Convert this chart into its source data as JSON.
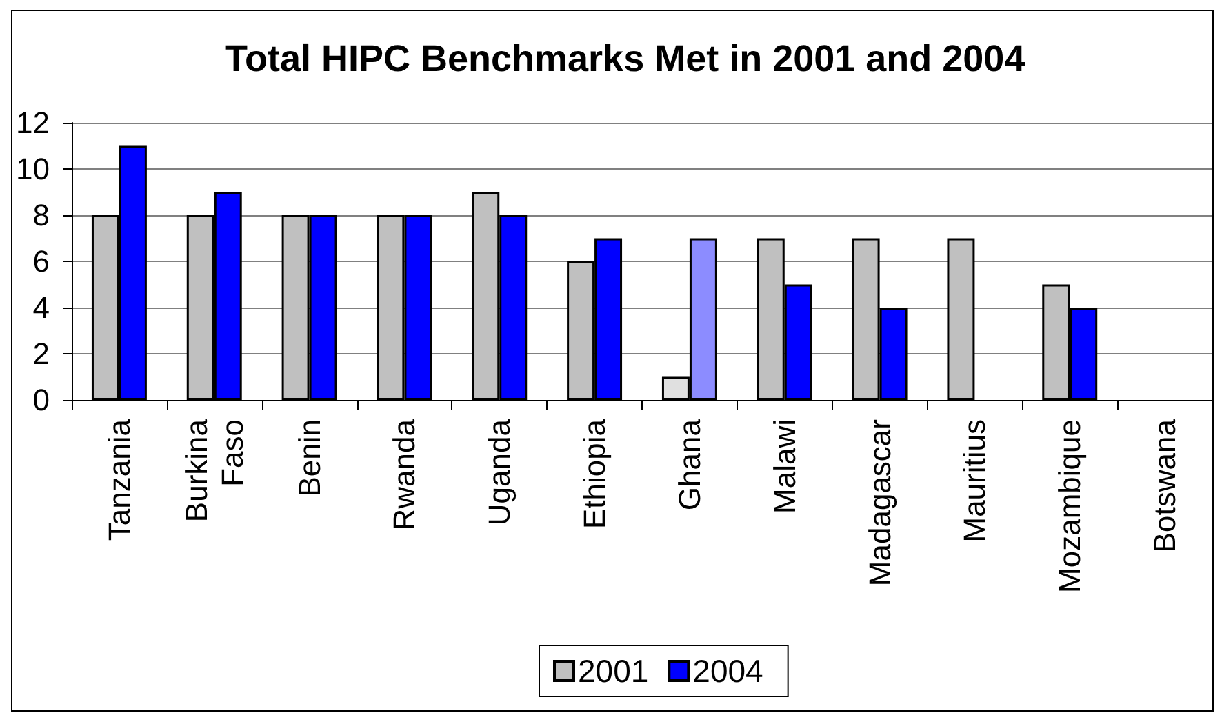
{
  "chart_data": {
    "type": "bar",
    "title": "Total HIPC Benchmarks Met in 2001 and 2004",
    "categories": [
      "Tanzania",
      "Burkina Faso",
      "Benin",
      "Rwanda",
      "Uganda",
      "Ethiopia",
      "Ghana",
      "Malawi",
      "Madagascar",
      "Mauritius",
      "Mozambique",
      "Botswana"
    ],
    "series": [
      {
        "name": "2001",
        "color": "#c0c0c0",
        "colors": [
          "#c0c0c0",
          "#c0c0c0",
          "#c0c0c0",
          "#c0c0c0",
          "#c0c0c0",
          "#c0c0c0",
          "#e0e0e0",
          "#c0c0c0",
          "#c0c0c0",
          "#c0c0c0",
          "#c0c0c0",
          "#c0c0c0"
        ],
        "values": [
          8,
          8,
          8,
          8,
          9,
          6,
          1,
          7,
          7,
          7,
          5,
          null
        ]
      },
      {
        "name": "2004",
        "color": "#0000ff",
        "colors": [
          "#0000ff",
          "#0000ff",
          "#0000ff",
          "#0000ff",
          "#0000ff",
          "#0000ff",
          "#8c8cff",
          "#0000ff",
          "#0000ff",
          "#0000ff",
          "#0000ff",
          "#0000ff"
        ],
        "values": [
          11,
          9,
          8,
          8,
          8,
          7,
          7,
          5,
          4,
          null,
          4,
          null
        ]
      }
    ],
    "ylim": [
      0,
      12
    ],
    "yticks": [
      0,
      2,
      4,
      6,
      8,
      10,
      12
    ],
    "grid": "y",
    "legend": "bottom"
  }
}
